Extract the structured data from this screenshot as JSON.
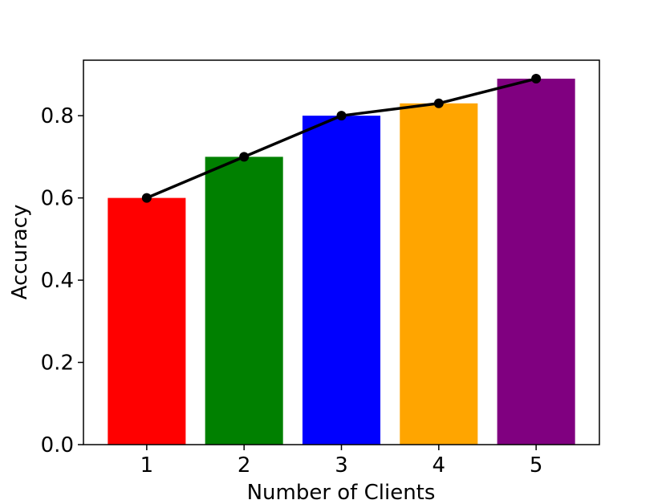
{
  "chart_data": {
    "type": "bar",
    "categories": [
      "1",
      "2",
      "3",
      "4",
      "5"
    ],
    "values": [
      0.6,
      0.7,
      0.8,
      0.83,
      0.89
    ],
    "bar_colors": [
      "#ff0000",
      "#008000",
      "#0000ff",
      "#ffa500",
      "#800080"
    ],
    "line": {
      "values": [
        0.6,
        0.7,
        0.8,
        0.83,
        0.89
      ],
      "color": "#000000",
      "marker": "circle"
    },
    "title": "",
    "xlabel": "Number of Clients",
    "ylabel": "Accuracy",
    "ylim": [
      0,
      0.935
    ],
    "yticks": [
      "0.0",
      "0.2",
      "0.4",
      "0.6",
      "0.8"
    ],
    "ytick_values": [
      0.0,
      0.2,
      0.4,
      0.6,
      0.8
    ],
    "grid": false,
    "legend": "none"
  }
}
